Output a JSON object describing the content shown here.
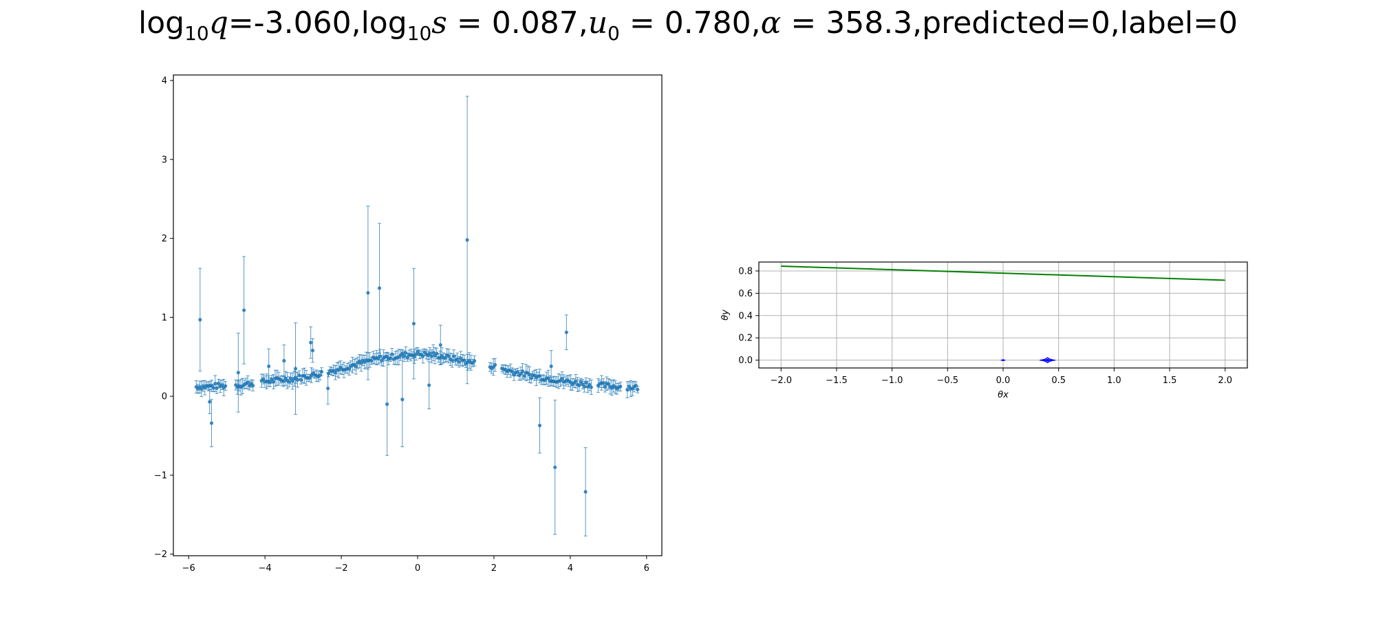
{
  "title": {
    "q_label": "log",
    "q_base": "10",
    "q_var": "q",
    "q_value": "=-3.060,",
    "s_label": "log",
    "s_base": "10",
    "s_var": "s",
    "s_value": " = 0.087,",
    "u_var": "u",
    "u_sub": "0",
    "u_value": " = 0.780,",
    "alpha_var": "α",
    "alpha_value": " = 358.3,",
    "tail": "predicted=0,label=0"
  },
  "colors": {
    "points": "#1f77b4",
    "trajectory": "#008000",
    "caustic": "#0000ff",
    "grid": "#b0b0b0"
  },
  "chart_data": [
    {
      "type": "scatter",
      "name": "light-curve",
      "title": "",
      "xlabel": "",
      "ylabel": "",
      "xlim": [
        -6.4,
        6.4
      ],
      "ylim": [
        -2.02,
        4.07
      ],
      "xticks": [
        -6,
        -4,
        -2,
        0,
        2,
        4,
        6
      ],
      "yticks": [
        -2,
        -1,
        0,
        1,
        2,
        3,
        4
      ],
      "xtick_labels": [
        "−6",
        "−4",
        "−2",
        "0",
        "2",
        "4",
        "6"
      ],
      "ytick_labels": [
        "−2",
        "−1",
        "0",
        "1",
        "2",
        "3",
        "4"
      ],
      "grid": false,
      "baseline": {
        "segments": [
          [
            -5.8,
            0.12
          ],
          [
            -4.7,
            0.14
          ],
          [
            -4.0,
            0.19
          ],
          [
            -3.3,
            0.22
          ],
          [
            -2.6,
            0.28
          ],
          [
            -2.1,
            0.34
          ],
          [
            -1.5,
            0.42
          ],
          [
            -1.0,
            0.48
          ],
          [
            -0.5,
            0.51
          ],
          [
            0.0,
            0.54
          ],
          [
            0.5,
            0.52
          ],
          [
            1.0,
            0.47
          ],
          [
            1.5,
            0.42
          ],
          [
            2.0,
            0.38
          ],
          [
            2.5,
            0.31
          ],
          [
            3.0,
            0.26
          ],
          [
            3.5,
            0.22
          ],
          [
            4.0,
            0.18
          ],
          [
            4.5,
            0.15
          ],
          [
            5.0,
            0.13
          ],
          [
            5.8,
            0.11
          ]
        ],
        "gaps": [
          [
            -5.0,
            -4.8
          ],
          [
            -4.3,
            -4.1
          ],
          [
            -2.5,
            -2.35
          ],
          [
            1.5,
            1.85
          ],
          [
            2.05,
            2.2
          ],
          [
            4.55,
            4.7
          ],
          [
            5.35,
            5.45
          ]
        ],
        "spacing": 0.045,
        "scatter": 0.035,
        "err": 0.07
      },
      "points": [
        {
          "x": -5.7,
          "y": 0.97,
          "err": 0.65
        },
        {
          "x": -5.4,
          "y": -0.34,
          "err": 0.3
        },
        {
          "x": -5.45,
          "y": -0.07,
          "err": 0.15
        },
        {
          "x": -4.55,
          "y": 1.09,
          "err": 0.68
        },
        {
          "x": -4.7,
          "y": 0.3,
          "err": 0.5
        },
        {
          "x": -3.9,
          "y": 0.38,
          "err": 0.22
        },
        {
          "x": -3.5,
          "y": 0.45,
          "err": 0.2
        },
        {
          "x": -3.2,
          "y": 0.35,
          "err": 0.58
        },
        {
          "x": -2.8,
          "y": 0.68,
          "err": 0.2
        },
        {
          "x": -2.75,
          "y": 0.58,
          "err": 0.15
        },
        {
          "x": -2.35,
          "y": 0.1,
          "err": 0.2
        },
        {
          "x": -1.3,
          "y": 1.31,
          "err": 1.1
        },
        {
          "x": -1.0,
          "y": 1.37,
          "err": 0.82
        },
        {
          "x": -0.8,
          "y": -0.1,
          "err": 0.65
        },
        {
          "x": -0.4,
          "y": -0.04,
          "err": 0.6
        },
        {
          "x": -0.1,
          "y": 0.92,
          "err": 0.7
        },
        {
          "x": 0.3,
          "y": 0.14,
          "err": 0.3
        },
        {
          "x": 0.6,
          "y": 0.65,
          "err": 0.25
        },
        {
          "x": 1.3,
          "y": 1.98,
          "err": 1.82
        },
        {
          "x": 3.2,
          "y": -0.37,
          "err": 0.35
        },
        {
          "x": 3.6,
          "y": -0.9,
          "err": 0.85
        },
        {
          "x": 3.9,
          "y": 0.81,
          "err": 0.22
        },
        {
          "x": 4.4,
          "y": -1.21,
          "err": 0.56
        },
        {
          "x": 3.5,
          "y": 0.38,
          "err": 0.2
        }
      ]
    },
    {
      "type": "line",
      "name": "lens-geometry",
      "title": "",
      "xlabel": "θx",
      "ylabel": "θy",
      "xlim": [
        -2.2,
        2.2
      ],
      "ylim": [
        -0.07,
        0.88
      ],
      "xticks": [
        -2.0,
        -1.5,
        -1.0,
        -0.5,
        0.0,
        0.5,
        1.0,
        1.5,
        2.0
      ],
      "yticks": [
        0.0,
        0.2,
        0.4,
        0.6,
        0.8
      ],
      "xtick_labels": [
        "−2.0",
        "−1.5",
        "−1.0",
        "−0.5",
        "0.0",
        "0.5",
        "1.0",
        "1.5",
        "2.0"
      ],
      "ytick_labels": [
        "0.0",
        "0.2",
        "0.4",
        "0.6",
        "0.8"
      ],
      "grid": true,
      "trajectory": {
        "x": [
          -2.0,
          2.0
        ],
        "y": [
          0.843,
          0.717
        ]
      },
      "caustics": [
        {
          "x": 0.0,
          "y": 0.0,
          "w": 0.04,
          "h": 0.012
        },
        {
          "x": 0.4,
          "y": 0.0,
          "w": 0.14,
          "h": 0.05
        }
      ]
    }
  ]
}
